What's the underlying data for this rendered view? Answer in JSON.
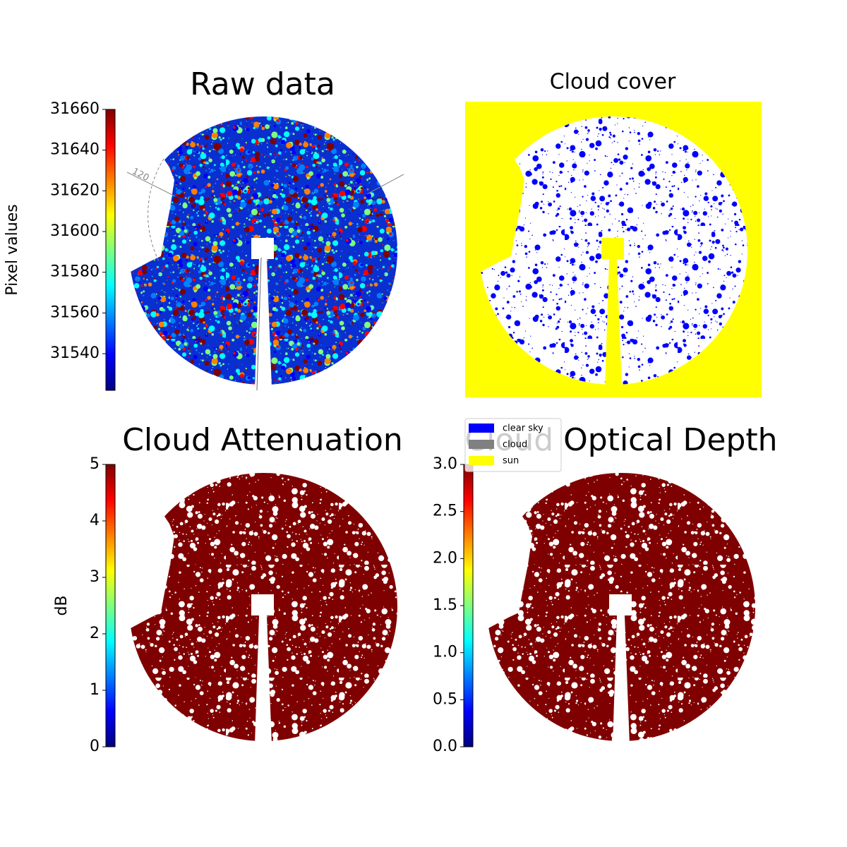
{
  "chart_data": [
    {
      "type": "image",
      "title": "Raw data",
      "colorbar_label": "Pixel values",
      "colormap": "jet",
      "ylim": [
        31522,
        31660
      ],
      "yticks": [
        31540,
        31560,
        31580,
        31600,
        31620,
        31640,
        31660
      ],
      "annotations": [
        "120"
      ]
    },
    {
      "type": "image",
      "title": "Cloud cover",
      "legend": "lower left",
      "series": [
        {
          "name": "clear sky",
          "color": "#0000ff"
        },
        {
          "name": "cloud",
          "color": "#808080"
        },
        {
          "name": "sun",
          "color": "#ffff00"
        }
      ]
    },
    {
      "type": "image",
      "title": "Cloud Attenuation",
      "colorbar_label": "dB",
      "colormap": "jet",
      "ylim": [
        0,
        5
      ],
      "yticks": [
        0,
        1,
        2,
        3,
        4,
        5
      ]
    },
    {
      "type": "image",
      "title": "Cloud Optical Depth",
      "colormap": "jet",
      "ylim": [
        0,
        3
      ],
      "yticks": [
        {
          "value": 0,
          "label": "0.0"
        },
        0.5,
        {
          "value": 1,
          "label": "1.0"
        },
        1.5,
        {
          "value": 2,
          "label": "2.0"
        },
        2.5,
        {
          "value": 3,
          "label": "3.0"
        }
      ]
    }
  ]
}
